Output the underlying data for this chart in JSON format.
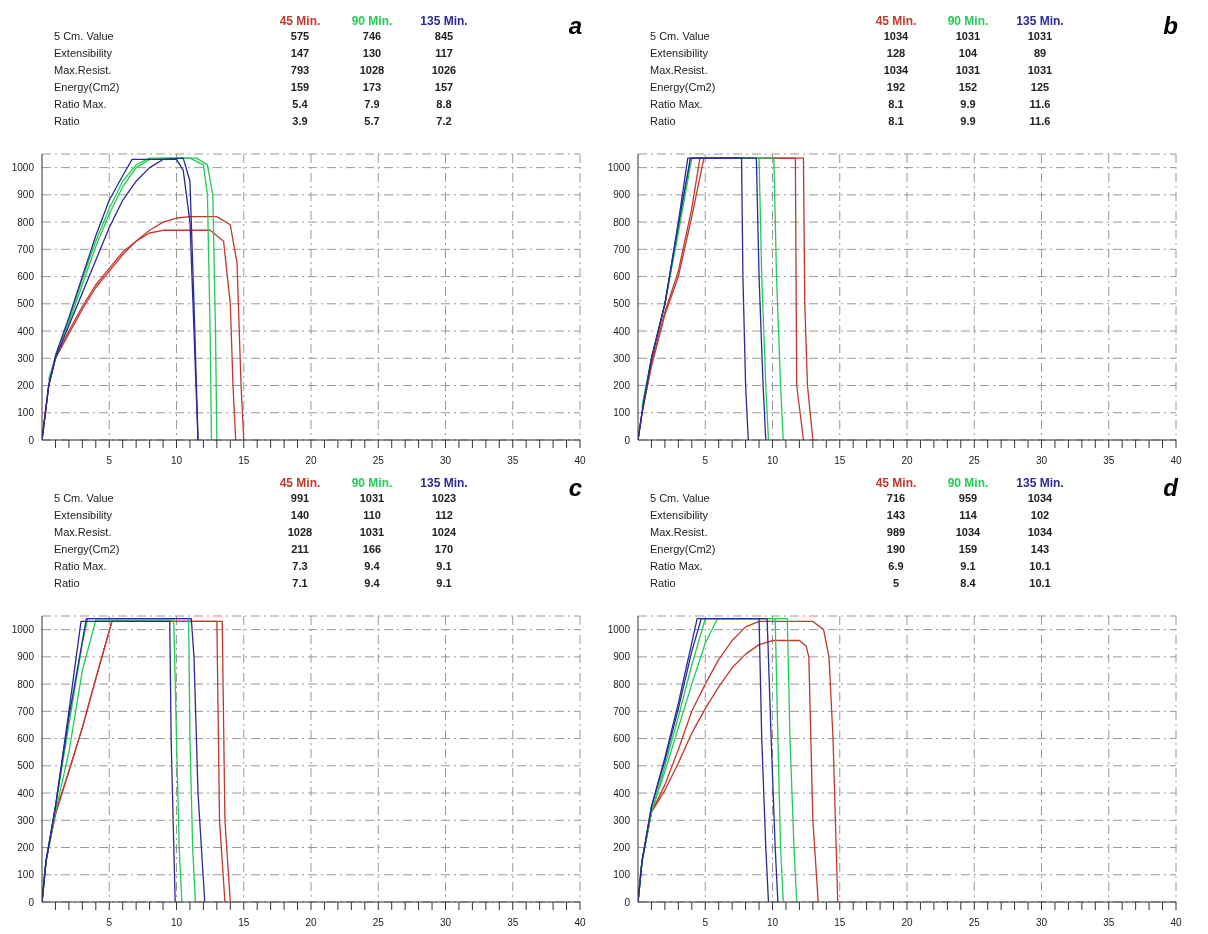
{
  "chart_data": [
    {
      "type": "line",
      "title": "a",
      "legend": "top",
      "grid": true,
      "marker": "none",
      "xlim": [
        0,
        40
      ],
      "ylim": [
        0,
        1050
      ],
      "yticks": [
        0,
        100,
        200,
        300,
        400,
        500,
        600,
        700,
        800,
        900,
        1000
      ],
      "xticks": [
        {
          "value": 1,
          "label": null
        },
        {
          "value": 2,
          "label": null
        },
        {
          "value": 3,
          "label": null
        },
        {
          "value": 4,
          "label": null
        },
        5,
        {
          "value": 6,
          "label": null
        },
        {
          "value": 7,
          "label": null
        },
        {
          "value": 8,
          "label": null
        },
        {
          "value": 9,
          "label": null
        },
        10,
        {
          "value": 11,
          "label": null
        },
        {
          "value": 12,
          "label": null
        },
        {
          "value": 13,
          "label": null
        },
        {
          "value": 14,
          "label": null
        },
        15,
        {
          "value": 16,
          "label": null
        },
        {
          "value": 17,
          "label": null
        },
        {
          "value": 18,
          "label": null
        },
        {
          "value": 19,
          "label": null
        },
        20,
        {
          "value": 21,
          "label": null
        },
        {
          "value": 22,
          "label": null
        },
        {
          "value": 23,
          "label": null
        },
        {
          "value": 24,
          "label": null
        },
        25,
        {
          "value": 26,
          "label": null
        },
        {
          "value": 27,
          "label": null
        },
        {
          "value": 28,
          "label": null
        },
        {
          "value": 29,
          "label": null
        },
        30,
        {
          "value": 31,
          "label": null
        },
        {
          "value": 32,
          "label": null
        },
        {
          "value": 33,
          "label": null
        },
        {
          "value": 34,
          "label": null
        },
        35,
        {
          "value": 36,
          "label": null
        },
        {
          "value": 37,
          "label": null
        },
        {
          "value": 38,
          "label": null
        },
        {
          "value": 39,
          "label": null
        },
        40
      ],
      "annotations": [
        "5 Cm. Value",
        "575",
        "746",
        "845",
        "Extensibility",
        "147",
        "130",
        "117",
        "Max.Resist.",
        "793",
        "1028",
        "1026",
        "Energy(Cm2)",
        "159",
        "173",
        "157",
        "Ratio Max.",
        "5.4",
        "7.9",
        "8.8",
        "Ratio",
        "3.9",
        "5.7",
        "7.2"
      ],
      "series": [
        {
          "name": "45 Min.",
          "color": "#c0392b",
          "x": [
            0,
            0.5,
            1,
            2,
            3,
            4,
            5,
            6,
            7,
            8,
            9,
            10,
            11,
            13,
            14,
            14.5,
            14.8,
            15.0
          ],
          "values": [
            0,
            200,
            300,
            390,
            480,
            560,
            620,
            680,
            730,
            770,
            800,
            815,
            820,
            820,
            790,
            650,
            200,
            0
          ]
        },
        {
          "color": "#c0392b",
          "x": [
            0,
            0.5,
            1,
            2,
            3,
            4,
            5,
            6,
            7,
            8,
            9,
            10,
            12.5,
            13.5,
            14.0,
            14.2,
            14.4
          ],
          "values": [
            0,
            200,
            300,
            400,
            490,
            570,
            630,
            690,
            730,
            760,
            770,
            770,
            770,
            730,
            500,
            200,
            0
          ]
        },
        {
          "name": "90 Min.",
          "color": "#22cc55",
          "x": [
            0.5,
            1,
            2,
            3,
            4,
            5,
            6,
            7,
            8,
            9,
            11,
            12,
            12.3,
            12.5,
            12.6
          ],
          "values": [
            215,
            300,
            430,
            570,
            710,
            830,
            930,
            1000,
            1030,
            1035,
            1035,
            1010,
            900,
            400,
            0
          ]
        },
        {
          "color": "#22cc55",
          "x": [
            0.5,
            1,
            2,
            3,
            4,
            5,
            6,
            7,
            8,
            9,
            11.5,
            12.3,
            12.7,
            12.9,
            13.0
          ],
          "values": [
            225,
            300,
            440,
            590,
            730,
            850,
            950,
            1010,
            1035,
            1035,
            1035,
            1010,
            900,
            400,
            0
          ]
        },
        {
          "name": "135 Min.",
          "color": "#2a2a9a",
          "x": [
            0,
            0.5,
            1,
            2,
            3,
            4,
            5,
            6,
            6.7,
            10,
            10.5,
            11,
            11.3,
            11.6
          ],
          "values": [
            0,
            200,
            310,
            450,
            600,
            750,
            880,
            970,
            1030,
            1030,
            990,
            800,
            400,
            0
          ]
        },
        {
          "color": "#2a2a9a",
          "x": [
            0,
            0.5,
            1,
            2,
            3,
            4,
            5,
            6,
            7,
            8,
            9,
            10.5,
            11,
            11.3,
            11.6
          ],
          "values": [
            0,
            200,
            300,
            420,
            540,
            660,
            780,
            880,
            950,
            1000,
            1030,
            1035,
            950,
            500,
            0
          ]
        }
      ]
    },
    {
      "type": "line",
      "title": "b",
      "legend": "top",
      "grid": true,
      "marker": "none",
      "xlim": [
        0,
        40
      ],
      "ylim": [
        0,
        1050
      ],
      "yticks": [
        0,
        100,
        200,
        300,
        400,
        500,
        600,
        700,
        800,
        900,
        1000
      ],
      "xticks": [
        {
          "value": 1,
          "label": null
        },
        {
          "value": 2,
          "label": null
        },
        {
          "value": 3,
          "label": null
        },
        {
          "value": 4,
          "label": null
        },
        5,
        {
          "value": 6,
          "label": null
        },
        {
          "value": 7,
          "label": null
        },
        {
          "value": 8,
          "label": null
        },
        {
          "value": 9,
          "label": null
        },
        10,
        {
          "value": 11,
          "label": null
        },
        {
          "value": 12,
          "label": null
        },
        {
          "value": 13,
          "label": null
        },
        {
          "value": 14,
          "label": null
        },
        15,
        {
          "value": 16,
          "label": null
        },
        {
          "value": 17,
          "label": null
        },
        {
          "value": 18,
          "label": null
        },
        {
          "value": 19,
          "label": null
        },
        20,
        {
          "value": 21,
          "label": null
        },
        {
          "value": 22,
          "label": null
        },
        {
          "value": 23,
          "label": null
        },
        {
          "value": 24,
          "label": null
        },
        25,
        {
          "value": 26,
          "label": null
        },
        {
          "value": 27,
          "label": null
        },
        {
          "value": 28,
          "label": null
        },
        {
          "value": 29,
          "label": null
        },
        30,
        {
          "value": 31,
          "label": null
        },
        {
          "value": 32,
          "label": null
        },
        {
          "value": 33,
          "label": null
        },
        {
          "value": 34,
          "label": null
        },
        35,
        {
          "value": 36,
          "label": null
        },
        {
          "value": 37,
          "label": null
        },
        {
          "value": 38,
          "label": null
        },
        {
          "value": 39,
          "label": null
        },
        40
      ],
      "annotations": [
        "5 Cm. Value",
        "1034",
        "1031",
        "1031",
        "Extensibility",
        "128",
        "104",
        "89",
        "Max.Resist.",
        "1034",
        "1031",
        "1031",
        "Energy(Cm2)",
        "192",
        "152",
        "125",
        "Ratio Max.",
        "8.1",
        "9.9",
        "11.6",
        "Ratio",
        "8.1",
        "9.9",
        "11.6"
      ],
      "series": [
        {
          "name": "45 Min.",
          "color": "#c0392b",
          "x": [
            0,
            0.3,
            1,
            2,
            3,
            4,
            4.6,
            11.7,
            11.8,
            12.3
          ],
          "values": [
            0,
            100,
            280,
            470,
            620,
            850,
            1035,
            1035,
            200,
            0
          ]
        },
        {
          "color": "#c0392b",
          "x": [
            0,
            0.3,
            1,
            2,
            3,
            4,
            4.9,
            12.3,
            12.4,
            12.6,
            13.0
          ],
          "values": [
            0,
            100,
            270,
            460,
            600,
            820,
            1035,
            1035,
            500,
            200,
            0
          ]
        },
        {
          "name": "90 Min.",
          "color": "#22cc55",
          "x": [
            0.3,
            1,
            2,
            3,
            3.9,
            9.0,
            9.2,
            9.5,
            9.7
          ],
          "values": [
            115,
            300,
            500,
            780,
            1035,
            1035,
            600,
            200,
            0
          ]
        },
        {
          "color": "#22cc55",
          "x": [
            0.3,
            1,
            2,
            3,
            4.0,
            10.1,
            10.3,
            10.6,
            10.8
          ],
          "values": [
            125,
            300,
            500,
            760,
            1035,
            1035,
            600,
            200,
            0
          ]
        },
        {
          "name": "135 Min.",
          "color": "#2a2a9a",
          "x": [
            0,
            0.3,
            1,
            2,
            3,
            3.7,
            7.7,
            7.8,
            8.0,
            8.2
          ],
          "values": [
            0,
            100,
            300,
            500,
            800,
            1035,
            1035,
            600,
            200,
            0
          ]
        },
        {
          "color": "#2a2a9a",
          "x": [
            0,
            0.3,
            1,
            2,
            3,
            3.9,
            8.8,
            9.0,
            9.3,
            9.5
          ],
          "values": [
            0,
            100,
            300,
            500,
            790,
            1035,
            1035,
            600,
            200,
            0
          ]
        }
      ]
    },
    {
      "type": "line",
      "title": "c",
      "legend": "top",
      "grid": true,
      "marker": "none",
      "xlim": [
        0,
        40
      ],
      "ylim": [
        0,
        1050
      ],
      "yticks": [
        0,
        100,
        200,
        300,
        400,
        500,
        600,
        700,
        800,
        900,
        1000
      ],
      "xticks": [
        {
          "value": 1,
          "label": null
        },
        {
          "value": 2,
          "label": null
        },
        {
          "value": 3,
          "label": null
        },
        {
          "value": 4,
          "label": null
        },
        5,
        {
          "value": 6,
          "label": null
        },
        {
          "value": 7,
          "label": null
        },
        {
          "value": 8,
          "label": null
        },
        {
          "value": 9,
          "label": null
        },
        10,
        {
          "value": 11,
          "label": null
        },
        {
          "value": 12,
          "label": null
        },
        {
          "value": 13,
          "label": null
        },
        {
          "value": 14,
          "label": null
        },
        15,
        {
          "value": 16,
          "label": null
        },
        {
          "value": 17,
          "label": null
        },
        {
          "value": 18,
          "label": null
        },
        {
          "value": 19,
          "label": null
        },
        20,
        {
          "value": 21,
          "label": null
        },
        {
          "value": 22,
          "label": null
        },
        {
          "value": 23,
          "label": null
        },
        {
          "value": 24,
          "label": null
        },
        25,
        {
          "value": 26,
          "label": null
        },
        {
          "value": 27,
          "label": null
        },
        {
          "value": 28,
          "label": null
        },
        {
          "value": 29,
          "label": null
        },
        30,
        {
          "value": 31,
          "label": null
        },
        {
          "value": 32,
          "label": null
        },
        {
          "value": 33,
          "label": null
        },
        {
          "value": 34,
          "label": null
        },
        35,
        {
          "value": 36,
          "label": null
        },
        {
          "value": 37,
          "label": null
        },
        {
          "value": 38,
          "label": null
        },
        {
          "value": 39,
          "label": null
        },
        40
      ],
      "annotations": [
        "5 Cm. Value",
        "991",
        "1031",
        "1023",
        "Extensibility",
        "140",
        "110",
        "112",
        "Max.Resist.",
        "1028",
        "1031",
        "1024",
        "Energy(Cm2)",
        "211",
        "166",
        "170",
        "Ratio Max.",
        "7.3",
        "9.4",
        "9.1",
        "Ratio",
        "7.1",
        "9.4",
        "9.1"
      ],
      "series": [
        {
          "name": "45 Min.",
          "color": "#c0392b",
          "x": [
            0,
            0.3,
            1,
            2,
            3,
            4,
            5.2,
            13.0,
            13.2,
            13.6
          ],
          "values": [
            0,
            150,
            330,
            480,
            640,
            820,
            1030,
            1030,
            300,
            0
          ]
        },
        {
          "color": "#c0392b",
          "x": [
            0,
            0.3,
            1,
            2,
            3,
            4,
            5.2,
            13.4,
            13.6,
            14.0
          ],
          "values": [
            0,
            150,
            320,
            480,
            640,
            820,
            1030,
            1030,
            300,
            0
          ]
        },
        {
          "name": "90 Min.",
          "color": "#22cc55",
          "x": [
            0,
            0.3,
            1,
            2,
            3,
            4.0,
            9.8,
            10.0,
            10.2,
            10.4
          ],
          "values": [
            0,
            150,
            330,
            550,
            850,
            1035,
            1035,
            600,
            200,
            0
          ]
        },
        {
          "color": "#22cc55",
          "x": [
            0,
            0.3,
            1,
            2,
            3,
            3.4,
            10.9,
            11.0,
            11.2,
            11.4
          ],
          "values": [
            0,
            150,
            350,
            650,
            950,
            1040,
            1040,
            600,
            200,
            0
          ]
        },
        {
          "name": "135 Min.",
          "color": "#2a2a9a",
          "x": [
            0,
            0.3,
            1,
            2,
            2.9,
            9.5,
            9.6,
            9.8,
            9.9
          ],
          "values": [
            0,
            150,
            350,
            700,
            1030,
            1030,
            600,
            200,
            0
          ]
        },
        {
          "color": "#2a2a9a",
          "x": [
            0,
            0.3,
            1,
            2,
            3.3,
            11.1,
            11.3,
            11.6,
            12.1
          ],
          "values": [
            0,
            150,
            350,
            680,
            1040,
            1040,
            900,
            400,
            0
          ]
        }
      ]
    },
    {
      "type": "line",
      "title": "d",
      "legend": "top",
      "grid": true,
      "marker": "none",
      "xlim": [
        0,
        40
      ],
      "ylim": [
        0,
        1050
      ],
      "yticks": [
        0,
        100,
        200,
        300,
        400,
        500,
        600,
        700,
        800,
        900,
        1000
      ],
      "xticks": [
        {
          "value": 1,
          "label": null
        },
        {
          "value": 2,
          "label": null
        },
        {
          "value": 3,
          "label": null
        },
        {
          "value": 4,
          "label": null
        },
        5,
        {
          "value": 6,
          "label": null
        },
        {
          "value": 7,
          "label": null
        },
        {
          "value": 8,
          "label": null
        },
        {
          "value": 9,
          "label": null
        },
        10,
        {
          "value": 11,
          "label": null
        },
        {
          "value": 12,
          "label": null
        },
        {
          "value": 13,
          "label": null
        },
        {
          "value": 14,
          "label": null
        },
        15,
        {
          "value": 16,
          "label": null
        },
        {
          "value": 17,
          "label": null
        },
        {
          "value": 18,
          "label": null
        },
        {
          "value": 19,
          "label": null
        },
        20,
        {
          "value": 21,
          "label": null
        },
        {
          "value": 22,
          "label": null
        },
        {
          "value": 23,
          "label": null
        },
        {
          "value": 24,
          "label": null
        },
        25,
        {
          "value": 26,
          "label": null
        },
        {
          "value": 27,
          "label": null
        },
        {
          "value": 28,
          "label": null
        },
        {
          "value": 29,
          "label": null
        },
        30,
        {
          "value": 31,
          "label": null
        },
        {
          "value": 32,
          "label": null
        },
        {
          "value": 33,
          "label": null
        },
        {
          "value": 34,
          "label": null
        },
        35,
        {
          "value": 36,
          "label": null
        },
        {
          "value": 37,
          "label": null
        },
        {
          "value": 38,
          "label": null
        },
        {
          "value": 39,
          "label": null
        },
        40
      ],
      "annotations": [
        "5 Cm. Value",
        "716",
        "959",
        "1034",
        "Extensibility",
        "143",
        "114",
        "102",
        "Max.Resist.",
        "989",
        "1034",
        "1034",
        "Energy(Cm2)",
        "190",
        "159",
        "143",
        "Ratio Max.",
        "6.9",
        "9.1",
        "10.1",
        "Ratio",
        "5",
        "8.4",
        "10.1"
      ],
      "series": [
        {
          "name": "45 Min.",
          "color": "#c0392b",
          "x": [
            0,
            0.3,
            1,
            2,
            3,
            4,
            5,
            6,
            7,
            8,
            9,
            13,
            13.8,
            14.2,
            14.5,
            14.85
          ],
          "values": [
            0,
            150,
            330,
            430,
            560,
            700,
            800,
            890,
            960,
            1010,
            1030,
            1030,
            1000,
            900,
            600,
            0
          ]
        },
        {
          "color": "#c0392b",
          "x": [
            0,
            0.3,
            1,
            2,
            3,
            4,
            5,
            6,
            7,
            8,
            9,
            10,
            12,
            12.5,
            12.7,
            13.0,
            13.4
          ],
          "values": [
            0,
            150,
            330,
            410,
            510,
            620,
            710,
            790,
            860,
            910,
            945,
            960,
            960,
            940,
            900,
            300,
            0
          ]
        },
        {
          "name": "90 Min.",
          "color": "#22cc55",
          "x": [
            0,
            0.3,
            1,
            2,
            3,
            4,
            5.0,
            10.2,
            10.4,
            10.6,
            10.8
          ],
          "values": [
            0,
            150,
            330,
            500,
            680,
            870,
            1040,
            1040,
            600,
            200,
            0
          ]
        },
        {
          "color": "#22cc55",
          "x": [
            0,
            0.3,
            1,
            2,
            3,
            4,
            5,
            5.9,
            11.1,
            11.3,
            11.6,
            11.8
          ],
          "values": [
            0,
            150,
            330,
            480,
            640,
            800,
            950,
            1040,
            1040,
            600,
            200,
            0
          ]
        },
        {
          "name": "135 Min.",
          "color": "#2a2a9a",
          "x": [
            0,
            0.3,
            1,
            2,
            3,
            4.4,
            9.0,
            9.2,
            9.5,
            9.7
          ],
          "values": [
            0,
            150,
            350,
            530,
            730,
            1040,
            1040,
            600,
            200,
            0
          ]
        },
        {
          "color": "#2a2a9a",
          "x": [
            0,
            0.3,
            1,
            2,
            3,
            4,
            4.7,
            9.6,
            9.9,
            10.2,
            10.4
          ],
          "values": [
            0,
            150,
            350,
            520,
            710,
            920,
            1040,
            1040,
            600,
            200,
            0
          ]
        }
      ]
    }
  ]
}
